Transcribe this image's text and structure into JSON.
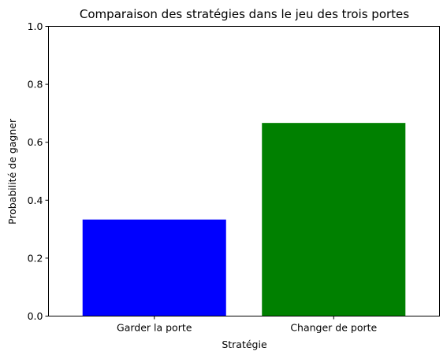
{
  "chart_data": {
    "type": "bar",
    "title": "Comparaison des stratégies dans le jeu des trois portes",
    "xlabel": "Stratégie",
    "ylabel": "Probabilité de gagner",
    "categories": [
      "Garder la porte",
      "Changer de porte"
    ],
    "values": [
      0.3333,
      0.6667
    ],
    "bar_colors": [
      "#0000ff",
      "#008000"
    ],
    "ylim": [
      0,
      1
    ],
    "yticks": [
      0.0,
      0.2,
      0.4,
      0.6,
      0.8,
      1.0
    ],
    "ytick_labels": [
      "0.0",
      "0.2",
      "0.4",
      "0.6",
      "0.8",
      "1.0"
    ],
    "grid": false,
    "legend": "none"
  }
}
